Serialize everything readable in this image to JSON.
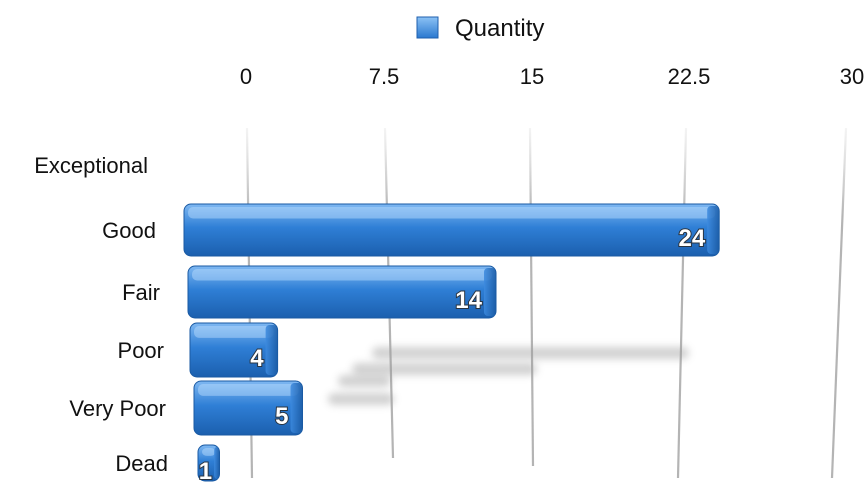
{
  "chart_data": {
    "type": "bar",
    "orientation": "horizontal",
    "style": "3d",
    "categories": [
      "Exceptional",
      "Good",
      "Fair",
      "Poor",
      "Very Poor",
      "Dead"
    ],
    "series": [
      {
        "name": "Quantity",
        "values": [
          0,
          24,
          14,
          4,
          5,
          1
        ],
        "color": "#2f7fd6"
      }
    ],
    "data_labels": [
      "",
      "24",
      "14",
      "4",
      "5",
      "1"
    ],
    "x_ticks": [
      "0",
      "7.5",
      "15",
      "22.5",
      "30"
    ],
    "xlim": [
      0,
      30
    ],
    "title": "",
    "xlabel": "",
    "ylabel": "",
    "grid": true,
    "legend_position": "top"
  }
}
